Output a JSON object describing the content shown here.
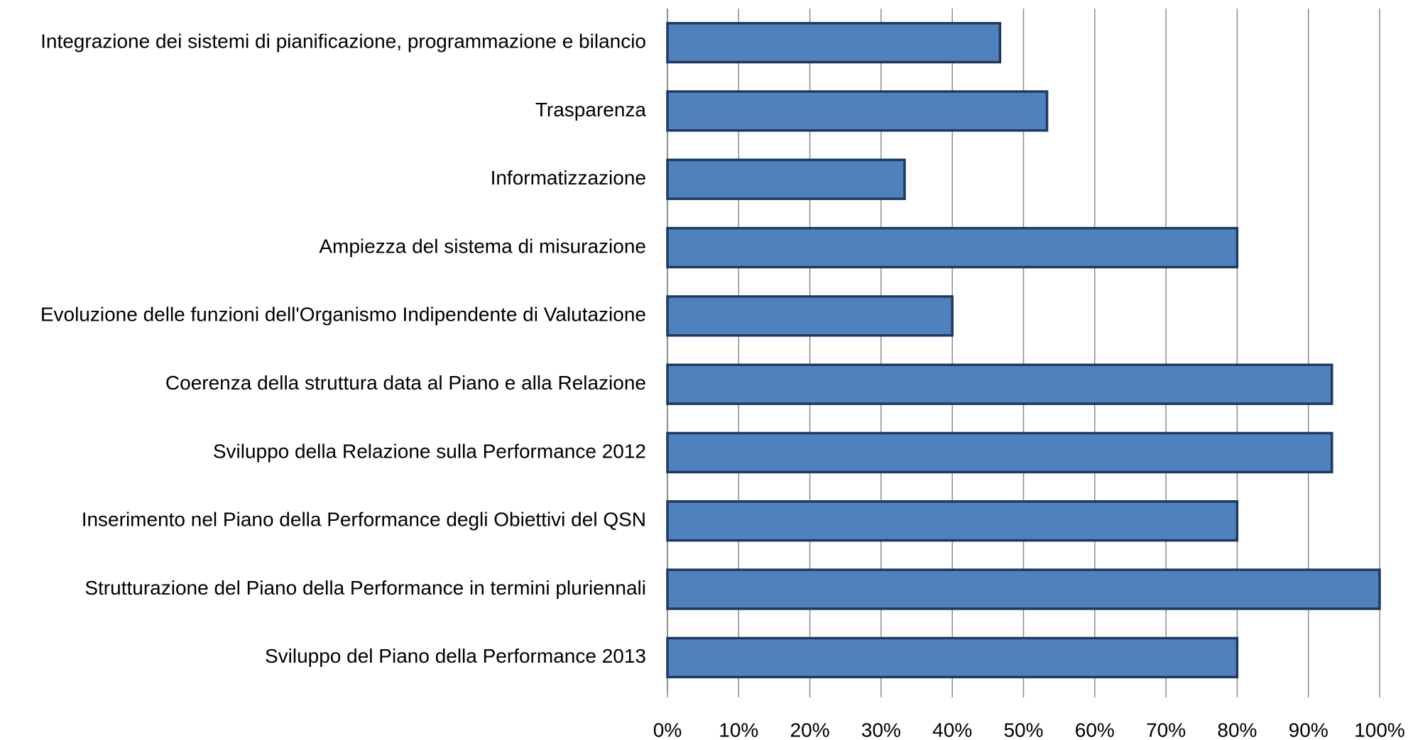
{
  "chart_data": {
    "type": "bar",
    "orientation": "horizontal",
    "categories": [
      "Integrazione dei sistemi di pianificazione, programmazione e bilancio",
      "Trasparenza",
      "Informatizzazione",
      "Ampiezza del sistema di misurazione",
      "Evoluzione delle funzioni dell'Organismo Indipendente di Valutazione",
      "Coerenza della struttura data al Piano e alla Relazione",
      "Sviluppo della Relazione sulla Performance 2012",
      "Inserimento nel Piano della Performance degli Obiettivi del QSN",
      "Strutturazione del Piano della Performance in termini pluriennali",
      "Sviluppo del Piano della Performance 2013"
    ],
    "values": [
      46.7,
      53.3,
      33.3,
      80,
      40,
      93.3,
      93.3,
      80,
      100,
      80
    ],
    "color": "#4f81bd",
    "edgecolor": "#1f3a60",
    "xlim": [
      0,
      100
    ],
    "xticks": [
      {
        "value": 0,
        "label": "0%"
      },
      {
        "value": 10,
        "label": "10%"
      },
      {
        "value": 20,
        "label": "20%"
      },
      {
        "value": 30,
        "label": "30%"
      },
      {
        "value": 40,
        "label": "40%"
      },
      {
        "value": 50,
        "label": "50%"
      },
      {
        "value": 60,
        "label": "60%"
      },
      {
        "value": 70,
        "label": "70%"
      },
      {
        "value": 80,
        "label": "80%"
      },
      {
        "value": 90,
        "label": "90%"
      },
      {
        "value": 100,
        "label": "100%"
      }
    ],
    "grid": true
  }
}
